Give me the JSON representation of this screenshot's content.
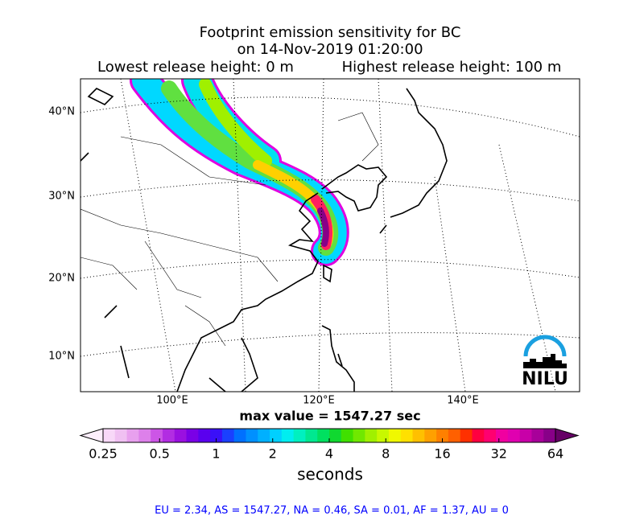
{
  "title": {
    "line1": "Footprint emission sensitivity for BC",
    "line2": "on 14-Nov-2019 01:20:00",
    "lowest": "Lowest release height: 0 m",
    "highest": "Highest release height: 100 m"
  },
  "map": {
    "lat_labels": [
      "40°N",
      "30°N",
      "20°N",
      "10°N"
    ],
    "lon_labels": [
      "100°E",
      "120°E",
      "140°E"
    ],
    "logo": "NILU"
  },
  "max_value": "max value = 1547.27 sec",
  "colorbar": {
    "ticks": [
      0.25,
      0.5,
      1,
      2,
      4,
      8,
      16,
      32,
      64
    ],
    "label": "seconds",
    "log_scale": true,
    "colors": [
      "#fdeefc",
      "#f8d8f8",
      "#f0c0f2",
      "#e8a0ee",
      "#dd80ea",
      "#cc55e6",
      "#b22de2",
      "#9a10e0",
      "#7a00e6",
      "#5a00ee",
      "#3a10f8",
      "#1a40ff",
      "#0070ff",
      "#0090ff",
      "#00b0ff",
      "#00d0ff",
      "#00eef0",
      "#00f0c0",
      "#00e890",
      "#00e060",
      "#10d830",
      "#40e000",
      "#70e800",
      "#a0f000",
      "#c8f800",
      "#f0f800",
      "#ffe000",
      "#ffc000",
      "#ffa000",
      "#ff8000",
      "#ff6000",
      "#ff3000",
      "#ff0040",
      "#ff0070",
      "#f000a0",
      "#e000b0",
      "#c800a8",
      "#a8009a",
      "#880088",
      "#660066"
    ]
  },
  "footer": "EU = 2.34,  AS = 1547.27,  NA = 0.46,  SA = 0.01,  AF = 1.37,  AU = 0"
}
